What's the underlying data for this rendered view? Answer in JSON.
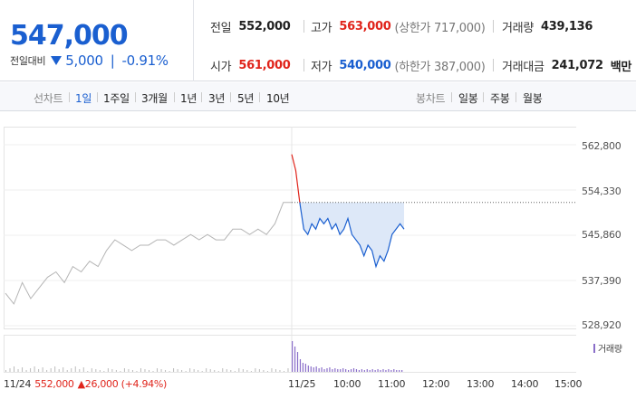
{
  "price": {
    "current": "547,000",
    "diff_label": "전일대비",
    "diff_value": "5,000",
    "diff_pct": "-0.91%"
  },
  "stats": {
    "prev_close": {
      "label": "전일",
      "value": "552,000"
    },
    "high": {
      "label": "고가",
      "value": "563,000",
      "sub": "(상한가 717,000)"
    },
    "volume": {
      "label": "거래량",
      "value": "439,136"
    },
    "open": {
      "label": "시가",
      "value": "561,000"
    },
    "low": {
      "label": "저가",
      "value": "540,000",
      "sub": "(하한가 387,000)"
    },
    "amount": {
      "label": "거래대금",
      "value": "241,072",
      "unit": "백만"
    }
  },
  "tabs": {
    "line_label": "선차트",
    "line_items": [
      "1일",
      "1주일",
      "3개월",
      "1년",
      "3년",
      "5년",
      "10년"
    ],
    "active": "1일",
    "candle_label": "봉차트",
    "candle_items": [
      "일봉",
      "주봉",
      "월봉"
    ]
  },
  "chart": {
    "y_ticks": [
      "562,800",
      "554,330",
      "545,860",
      "537,390",
      "528,920"
    ],
    "x_ticks": [
      "11/24",
      "11/25",
      "10:00",
      "11:00",
      "12:00",
      "13:00",
      "14:00",
      "15:00"
    ],
    "footer_date": "11/24",
    "footer_price": "552,000",
    "footer_change": "▲26,000 (+4.94%)",
    "volume_legend": "거래량",
    "prev_close_ref": 552000,
    "colors": {
      "up": "#e0241b",
      "down": "#1a5fd0",
      "prev": "#b5b5b5",
      "fill": "#dde8f8",
      "volume": "#8a6ec9"
    }
  },
  "chart_data": {
    "type": "line",
    "ylim": [
      528920,
      562800
    ],
    "y_ticks": [
      562800,
      554330,
      545860,
      537390,
      528920
    ],
    "series": [
      {
        "values": [
          535000,
          533000,
          537000,
          534000,
          536000,
          538000,
          539000,
          537000,
          540000,
          539000,
          541000,
          540000,
          543000,
          545000,
          544000,
          543000,
          544000,
          544000,
          545000,
          545000,
          544000,
          545000,
          546000,
          545000,
          546000,
          545000,
          545000,
          547000,
          547000,
          546000,
          547000,
          546000,
          548000,
          552000,
          552000
        ]
      },
      {
        "values": [
          561000,
          558000,
          552000,
          547000,
          546000,
          548000,
          547000,
          549000,
          548000,
          549000,
          547000,
          548000,
          546000,
          547000,
          549000,
          546000,
          545000,
          544000,
          542000,
          544000,
          543000,
          540000,
          542000,
          541000,
          543000,
          546000,
          547000,
          548000,
          547000
        ]
      }
    ]
  }
}
